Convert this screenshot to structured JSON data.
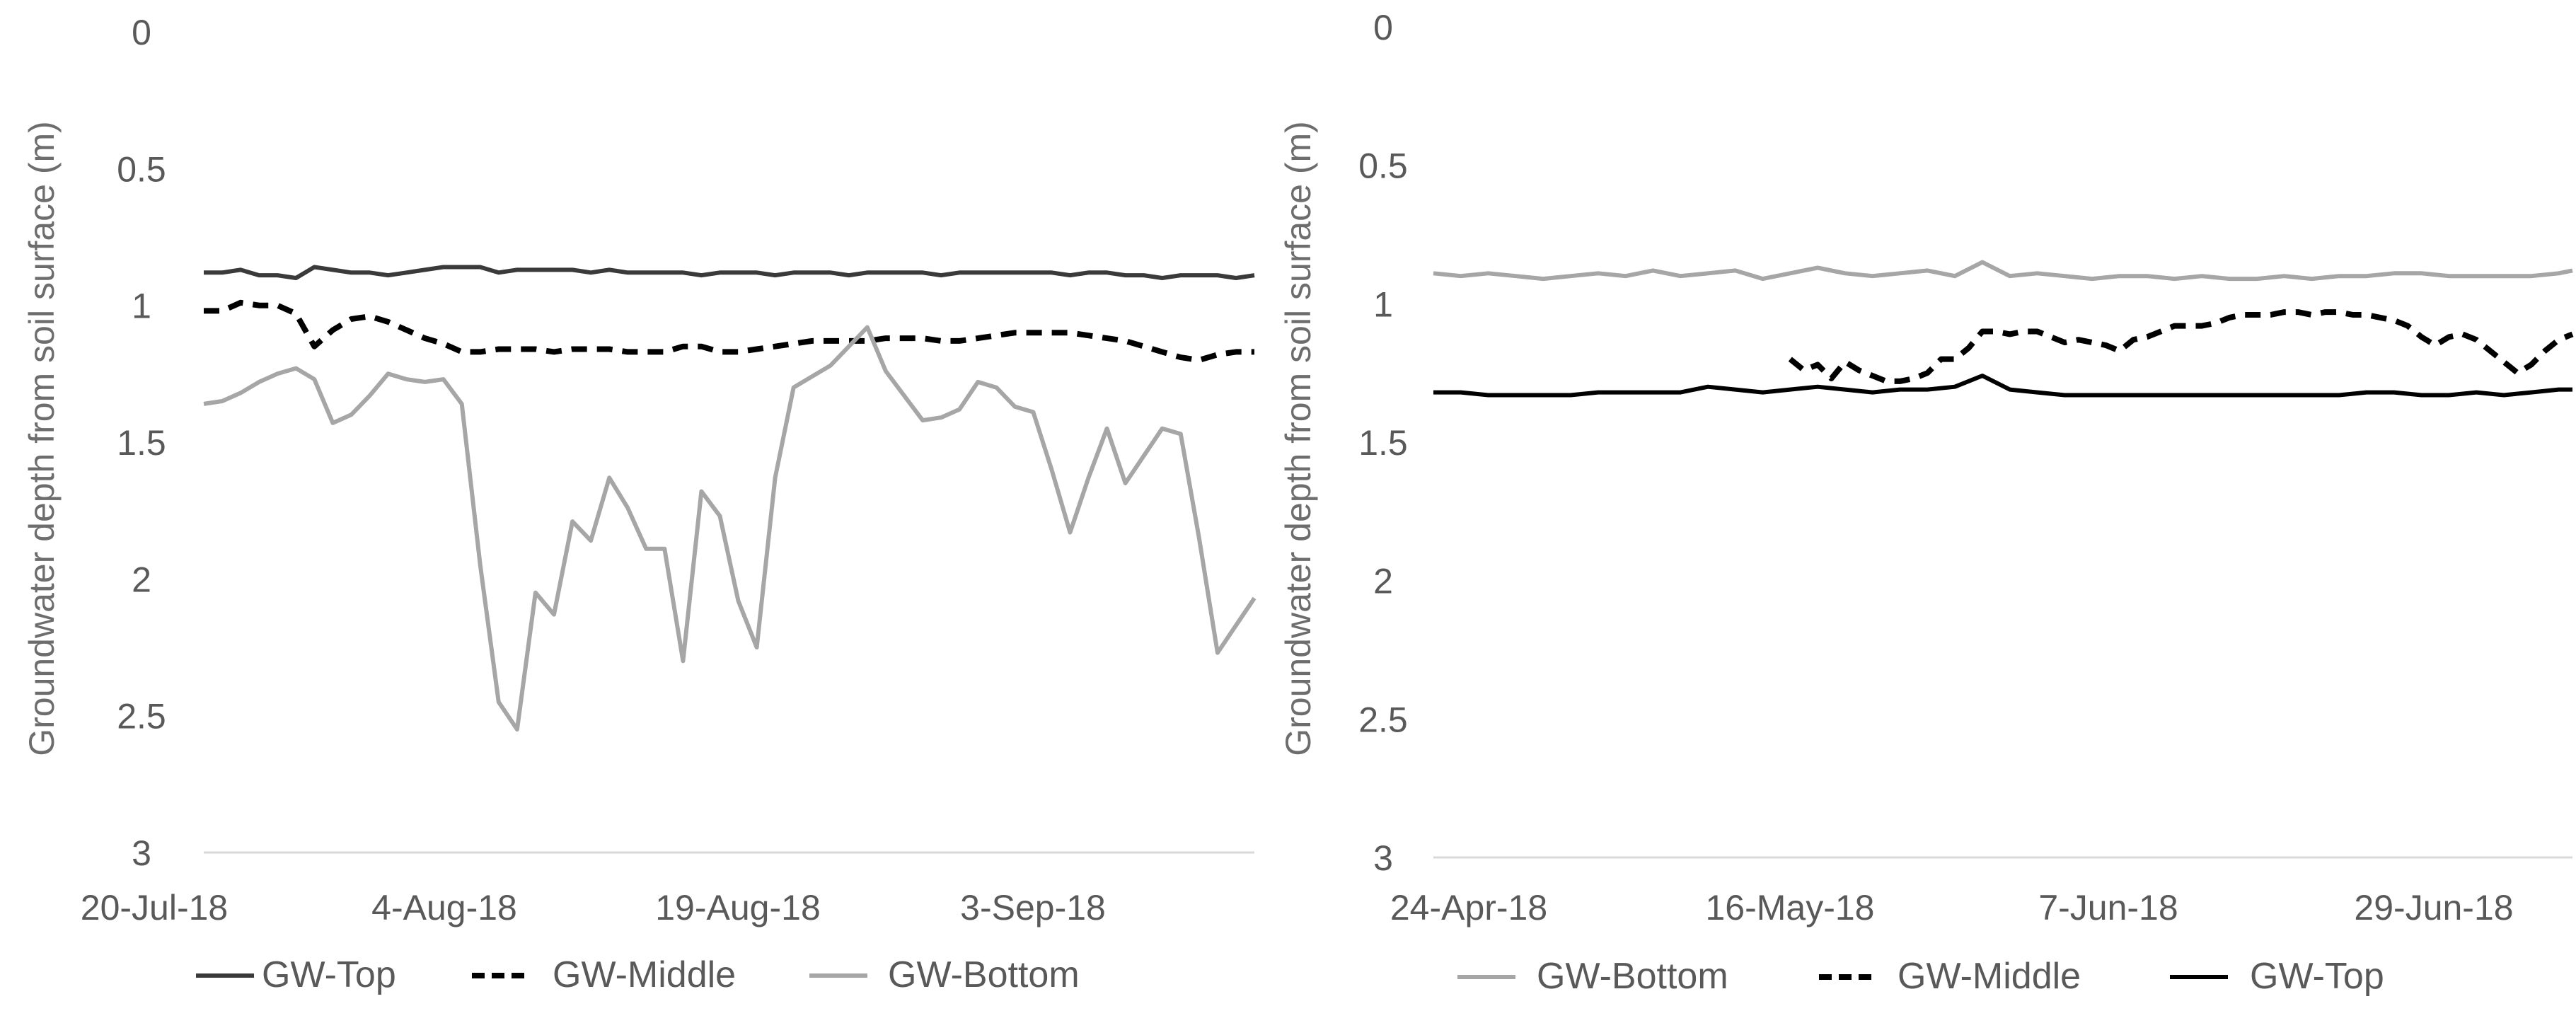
{
  "chart_data": [
    {
      "type": "line",
      "ylabel": "Groundwater depth from soil surface (m)",
      "ylim": [
        0,
        3
      ],
      "y_inverted": true,
      "yticks": [
        "0",
        "0.5",
        "1",
        "1.5",
        "2",
        "2.5",
        "3"
      ],
      "xticks": [
        "20-Jul-18",
        "4-Aug-18",
        "19-Aug-18",
        "3-Sep-18"
      ],
      "x_unit": "days since 20-Jul-18",
      "xlim": [
        0,
        57
      ],
      "x": [
        0,
        1,
        2,
        3,
        4,
        5,
        6,
        7,
        8,
        9,
        10,
        11,
        12,
        13,
        14,
        15,
        16,
        17,
        18,
        19,
        20,
        21,
        22,
        23,
        24,
        25,
        26,
        27,
        28,
        29,
        30,
        31,
        32,
        33,
        34,
        35,
        36,
        37,
        38,
        39,
        40,
        41,
        42,
        43,
        44,
        45,
        46,
        47,
        48,
        49,
        50,
        51,
        52,
        53,
        54,
        55,
        56,
        57
      ],
      "legend": [
        "GW-Top",
        "GW-Middle",
        "GW-Bottom"
      ],
      "series": [
        {
          "name": "GW-Top",
          "color": "#3a3a3a",
          "dash": "solid",
          "values": [
            0.88,
            0.88,
            0.87,
            0.89,
            0.89,
            0.9,
            0.86,
            0.87,
            0.88,
            0.88,
            0.89,
            0.88,
            0.87,
            0.86,
            0.86,
            0.86,
            0.88,
            0.87,
            0.87,
            0.87,
            0.87,
            0.88,
            0.87,
            0.88,
            0.88,
            0.88,
            0.88,
            0.89,
            0.88,
            0.88,
            0.88,
            0.89,
            0.88,
            0.88,
            0.88,
            0.89,
            0.88,
            0.88,
            0.88,
            0.88,
            0.89,
            0.88,
            0.88,
            0.88,
            0.88,
            0.88,
            0.88,
            0.89,
            0.88,
            0.88,
            0.89,
            0.89,
            0.9,
            0.89,
            0.89,
            0.89,
            0.9,
            0.89
          ]
        },
        {
          "name": "GW-Middle",
          "color": "#000000",
          "dash": "dashed",
          "values": [
            1.02,
            1.02,
            0.99,
            1.0,
            1.0,
            1.03,
            1.15,
            1.09,
            1.05,
            1.04,
            1.06,
            1.09,
            1.12,
            1.14,
            1.17,
            1.17,
            1.16,
            1.16,
            1.16,
            1.17,
            1.16,
            1.16,
            1.16,
            1.17,
            1.17,
            1.17,
            1.15,
            1.15,
            1.17,
            1.17,
            1.16,
            1.15,
            1.14,
            1.13,
            1.13,
            1.13,
            1.13,
            1.12,
            1.12,
            1.12,
            1.13,
            1.13,
            1.12,
            1.11,
            1.1,
            1.1,
            1.1,
            1.1,
            1.11,
            1.12,
            1.13,
            1.15,
            1.17,
            1.19,
            1.2,
            1.18,
            1.17,
            1.17
          ]
        },
        {
          "name": "GW-Bottom",
          "color": "#a6a6a6",
          "dash": "solid",
          "values": [
            1.36,
            1.35,
            1.32,
            1.28,
            1.25,
            1.23,
            1.27,
            1.43,
            1.4,
            1.33,
            1.25,
            1.27,
            1.28,
            1.27,
            1.36,
            1.95,
            2.45,
            2.55,
            2.05,
            2.13,
            1.79,
            1.86,
            1.63,
            1.74,
            1.89,
            1.89,
            2.3,
            1.68,
            1.77,
            2.08,
            2.25,
            1.63,
            1.3,
            1.26,
            1.22,
            1.15,
            1.08,
            1.24,
            1.33,
            1.42,
            1.41,
            1.38,
            1.28,
            1.3,
            1.37,
            1.39,
            1.6,
            1.83,
            1.63,
            1.45,
            1.65,
            1.55,
            1.45,
            1.47,
            1.85,
            2.27,
            2.17,
            2.07
          ]
        }
      ]
    },
    {
      "type": "line",
      "ylabel": "Groundwater depth from soil surface (m)",
      "ylim": [
        0,
        3
      ],
      "y_inverted": true,
      "yticks": [
        "0",
        "0.5",
        "1",
        "1.5",
        "2",
        "2.5",
        "3"
      ],
      "xticks": [
        "24-Apr-18",
        "16-May-18",
        "7-Jun-18",
        "29-Jun-18"
      ],
      "x_unit": "days since 24-Apr-18",
      "xlim": [
        0,
        83
      ],
      "legend": [
        "GW-Bottom",
        "GW-Middle",
        "GW-Top"
      ],
      "series": [
        {
          "name": "GW-Bottom",
          "color": "#a6a6a6",
          "dash": "solid",
          "x": [
            0,
            2,
            4,
            6,
            8,
            10,
            12,
            14,
            16,
            18,
            20,
            22,
            24,
            26,
            28,
            30,
            32,
            34,
            36,
            38,
            40,
            42,
            44,
            46,
            48,
            50,
            52,
            54,
            56,
            58,
            60,
            62,
            64,
            66,
            68,
            70,
            72,
            74,
            76,
            78,
            80,
            82,
            83
          ],
          "values": [
            0.89,
            0.9,
            0.89,
            0.9,
            0.91,
            0.9,
            0.89,
            0.9,
            0.88,
            0.9,
            0.89,
            0.88,
            0.91,
            0.89,
            0.87,
            0.89,
            0.9,
            0.89,
            0.88,
            0.9,
            0.85,
            0.9,
            0.89,
            0.9,
            0.91,
            0.9,
            0.9,
            0.91,
            0.9,
            0.91,
            0.91,
            0.9,
            0.91,
            0.9,
            0.9,
            0.89,
            0.89,
            0.9,
            0.9,
            0.9,
            0.9,
            0.89,
            0.88
          ]
        },
        {
          "name": "GW-Middle",
          "color": "#000000",
          "dash": "dashed",
          "x": [
            26,
            27,
            28,
            29,
            30,
            31,
            32,
            33,
            34,
            35,
            36,
            37,
            38,
            39,
            40,
            41,
            42,
            43,
            44,
            45,
            46,
            47,
            48,
            49,
            50,
            51,
            52,
            53,
            54,
            55,
            56,
            57,
            58,
            59,
            60,
            61,
            62,
            63,
            64,
            65,
            66,
            67,
            68,
            69,
            70,
            71,
            72,
            73,
            74,
            75,
            76,
            77,
            78,
            79,
            80,
            81,
            82,
            83
          ],
          "values": [
            1.2,
            1.24,
            1.22,
            1.27,
            1.21,
            1.24,
            1.26,
            1.28,
            1.28,
            1.27,
            1.25,
            1.2,
            1.2,
            1.16,
            1.1,
            1.1,
            1.11,
            1.1,
            1.1,
            1.12,
            1.14,
            1.13,
            1.14,
            1.15,
            1.17,
            1.13,
            1.12,
            1.1,
            1.08,
            1.08,
            1.08,
            1.07,
            1.05,
            1.04,
            1.04,
            1.04,
            1.03,
            1.03,
            1.04,
            1.03,
            1.03,
            1.04,
            1.04,
            1.05,
            1.06,
            1.08,
            1.12,
            1.15,
            1.12,
            1.11,
            1.13,
            1.17,
            1.21,
            1.25,
            1.22,
            1.17,
            1.13,
            1.11
          ]
        },
        {
          "name": "GW-Top",
          "color": "#000000",
          "dash": "solid",
          "x": [
            0,
            2,
            4,
            6,
            8,
            10,
            12,
            14,
            16,
            18,
            20,
            22,
            24,
            26,
            28,
            30,
            32,
            34,
            36,
            38,
            40,
            42,
            44,
            46,
            48,
            50,
            52,
            54,
            56,
            58,
            60,
            62,
            64,
            66,
            68,
            70,
            72,
            74,
            76,
            78,
            80,
            82,
            83
          ],
          "values": [
            1.32,
            1.32,
            1.33,
            1.33,
            1.33,
            1.33,
            1.32,
            1.32,
            1.32,
            1.32,
            1.3,
            1.31,
            1.32,
            1.31,
            1.3,
            1.31,
            1.32,
            1.31,
            1.31,
            1.3,
            1.26,
            1.31,
            1.32,
            1.33,
            1.33,
            1.33,
            1.33,
            1.33,
            1.33,
            1.33,
            1.33,
            1.33,
            1.33,
            1.33,
            1.32,
            1.32,
            1.33,
            1.33,
            1.32,
            1.33,
            1.32,
            1.31,
            1.31
          ]
        }
      ]
    }
  ]
}
